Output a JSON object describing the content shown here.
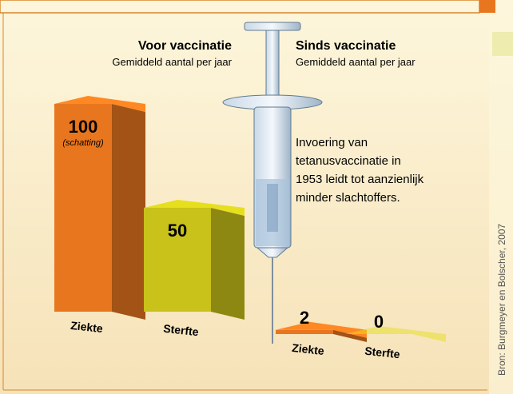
{
  "chart_data": {
    "type": "bar3d",
    "groups": [
      {
        "title": "Voor vaccinatie",
        "subtitle": "Gemiddeld aantal per jaar",
        "categories": [
          "Ziekte",
          "Sterfte"
        ],
        "values": [
          100,
          50
        ],
        "colors": [
          "#e8761e",
          "#c8c21a"
        ],
        "note": "(schatting)"
      },
      {
        "title": "Sinds vaccinatie",
        "subtitle": "Gemiddeld aantal per jaar",
        "categories": [
          "Ziekte",
          "Sterfte"
        ],
        "values": [
          2,
          0
        ],
        "colors": [
          "#e8761e",
          "#c8c21a"
        ]
      }
    ],
    "annotation_lines": [
      "Invoering van",
      "tetanusvaccinatie in",
      "1953 leidt tot aanzienlijk",
      "minder slachtoffers."
    ],
    "source": "Bron: Burgmeyer en Bolscher, 2007"
  }
}
